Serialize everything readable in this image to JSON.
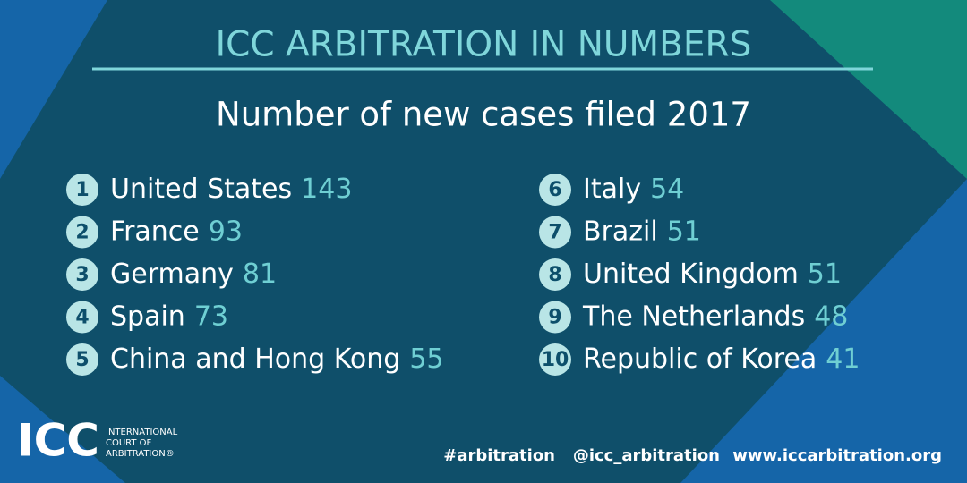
{
  "header": {
    "title": "ICC ARBITRATION IN NUMBERS",
    "subtitle": "Number of new cases filed 2017"
  },
  "ranking": [
    {
      "rank": 1,
      "name": "United States",
      "value": 143
    },
    {
      "rank": 2,
      "name": "France",
      "value": 93
    },
    {
      "rank": 3,
      "name": "Germany",
      "value": 81
    },
    {
      "rank": 4,
      "name": "Spain",
      "value": 73
    },
    {
      "rank": 5,
      "name": "China and Hong Kong",
      "value": 55
    },
    {
      "rank": 6,
      "name": "Italy",
      "value": 54
    },
    {
      "rank": 7,
      "name": "Brazil",
      "value": 51
    },
    {
      "rank": 8,
      "name": "United Kingdom",
      "value": 51
    },
    {
      "rank": 9,
      "name": "The Netherlands",
      "value": 48
    },
    {
      "rank": 10,
      "name": "Republic of Korea",
      "value": 41
    }
  ],
  "footer": {
    "logo": "ICC",
    "org_lines": [
      "INTERNATIONAL",
      "COURT OF",
      "ARBITRATION®"
    ],
    "links": [
      "#arbitration",
      "@icc_arbitration",
      "www.iccarbitration.org"
    ]
  }
}
